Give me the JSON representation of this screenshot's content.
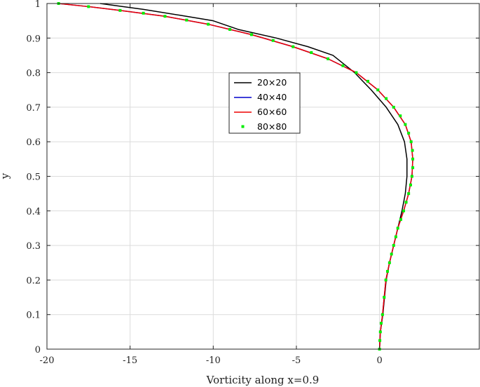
{
  "chart_data": {
    "type": "line",
    "xlabel": "Vorticity along x=0.9",
    "ylabel": "y",
    "xlim": [
      -20,
      6
    ],
    "ylim": [
      0,
      1
    ],
    "xticks": [
      -20,
      -15,
      -10,
      -5,
      0
    ],
    "yticks": [
      0,
      0.1,
      0.2,
      0.3,
      0.4,
      0.5,
      0.6,
      0.7,
      0.8,
      0.9,
      1
    ],
    "grid": true,
    "legend_position": "center",
    "series": [
      {
        "name": "20×20",
        "color": "#000000",
        "style": "line",
        "x": [
          0,
          0.05,
          0.2,
          0.4,
          0.6,
          0.85,
          1.1,
          1.35,
          1.55,
          1.65,
          1.65,
          1.5,
          1.1,
          0.4,
          -0.5,
          -1.5,
          -2.8,
          -4.3,
          -6.2,
          -8.5,
          -10,
          -12,
          -14.2,
          -16.8
        ],
        "y": [
          0,
          0.05,
          0.1,
          0.2,
          0.25,
          0.3,
          0.35,
          0.4,
          0.45,
          0.5,
          0.55,
          0.6,
          0.65,
          0.7,
          0.75,
          0.8,
          0.85,
          0.875,
          0.9,
          0.925,
          0.95,
          0.966,
          0.983,
          1
        ]
      },
      {
        "name": "40×40",
        "color": "#0000cc",
        "style": "line",
        "x": [
          0,
          0.05,
          0.18,
          0.38,
          0.6,
          0.85,
          1.1,
          1.45,
          1.75,
          1.95,
          2.0,
          1.9,
          1.55,
          0.85,
          -0.1,
          -1.4,
          -3.1,
          -5.2,
          -7.7,
          -10.3,
          -12.9,
          -15.6,
          -17.5,
          -19.3
        ],
        "y": [
          0,
          0.05,
          0.1,
          0.2,
          0.25,
          0.3,
          0.35,
          0.4,
          0.45,
          0.5,
          0.55,
          0.6,
          0.65,
          0.7,
          0.75,
          0.8,
          0.84,
          0.875,
          0.91,
          0.94,
          0.963,
          0.98,
          0.991,
          1
        ]
      },
      {
        "name": "60×60",
        "color": "#ee0000",
        "style": "line",
        "x": [
          0,
          0.05,
          0.18,
          0.38,
          0.6,
          0.85,
          1.1,
          1.45,
          1.75,
          1.95,
          2.0,
          1.9,
          1.55,
          0.85,
          -0.1,
          -1.4,
          -3.1,
          -5.2,
          -7.7,
          -10.3,
          -12.9,
          -15.6,
          -17.5,
          -19.3
        ],
        "y": [
          0,
          0.05,
          0.1,
          0.2,
          0.25,
          0.3,
          0.35,
          0.4,
          0.45,
          0.5,
          0.55,
          0.6,
          0.65,
          0.7,
          0.75,
          0.8,
          0.84,
          0.875,
          0.91,
          0.94,
          0.963,
          0.98,
          0.991,
          1
        ]
      },
      {
        "name": "80×80",
        "color": "#00ee00",
        "style": "markers",
        "x": [
          0,
          0.02,
          0.05,
          0.1,
          0.18,
          0.28,
          0.38,
          0.48,
          0.6,
          0.72,
          0.85,
          0.98,
          1.1,
          1.28,
          1.45,
          1.6,
          1.75,
          1.87,
          1.95,
          2.0,
          2.0,
          1.98,
          1.9,
          1.75,
          1.55,
          1.25,
          0.85,
          0.4,
          -0.1,
          -0.7,
          -1.4,
          -2.2,
          -3.1,
          -4.1,
          -5.2,
          -6.4,
          -7.7,
          -9,
          -10.3,
          -11.6,
          -12.9,
          -14.2,
          -15.6,
          -17.5,
          -19.3
        ],
        "y": [
          0,
          0.025,
          0.05,
          0.075,
          0.1,
          0.15,
          0.2,
          0.225,
          0.25,
          0.275,
          0.3,
          0.325,
          0.35,
          0.375,
          0.4,
          0.425,
          0.45,
          0.475,
          0.5,
          0.525,
          0.55,
          0.575,
          0.6,
          0.625,
          0.65,
          0.675,
          0.7,
          0.725,
          0.75,
          0.775,
          0.8,
          0.82,
          0.84,
          0.858,
          0.875,
          0.893,
          0.91,
          0.925,
          0.94,
          0.952,
          0.963,
          0.972,
          0.98,
          0.991,
          1
        ]
      }
    ]
  }
}
